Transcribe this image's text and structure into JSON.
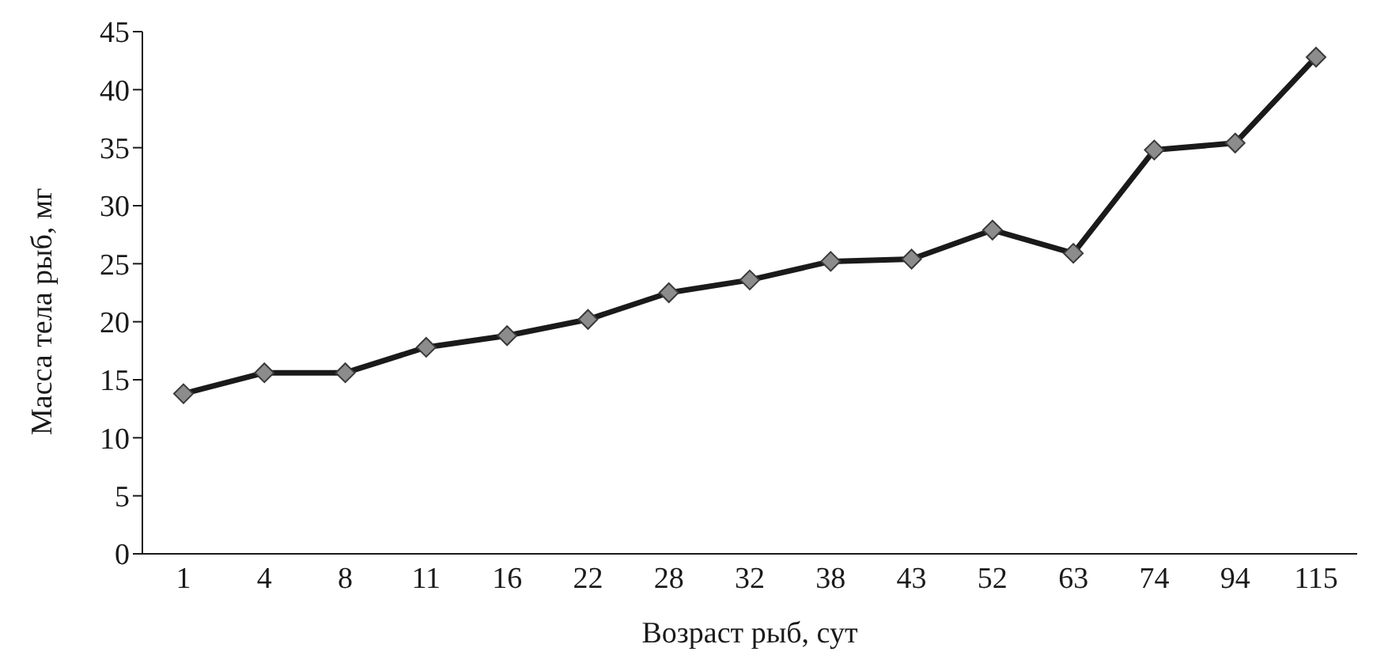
{
  "chart_data": {
    "type": "line",
    "xlabel": "Возраст рыб, сут",
    "ylabel": "Масса тела рыб, мг",
    "categories": [
      "1",
      "4",
      "8",
      "11",
      "16",
      "22",
      "28",
      "32",
      "38",
      "43",
      "52",
      "63",
      "74",
      "94",
      "115"
    ],
    "series": [
      {
        "color": "#1a1a1a",
        "values": [
          13.8,
          15.6,
          15.6,
          17.8,
          18.8,
          20.2,
          22.5,
          23.6,
          25.2,
          25.4,
          27.9,
          25.9,
          34.8,
          35.4,
          42.8
        ]
      }
    ],
    "ylim": [
      0,
      45
    ],
    "yticks": [
      0,
      5,
      10,
      15,
      20,
      25,
      30,
      35,
      40,
      45
    ],
    "marker": "diamond",
    "grid": false,
    "legend": false
  }
}
